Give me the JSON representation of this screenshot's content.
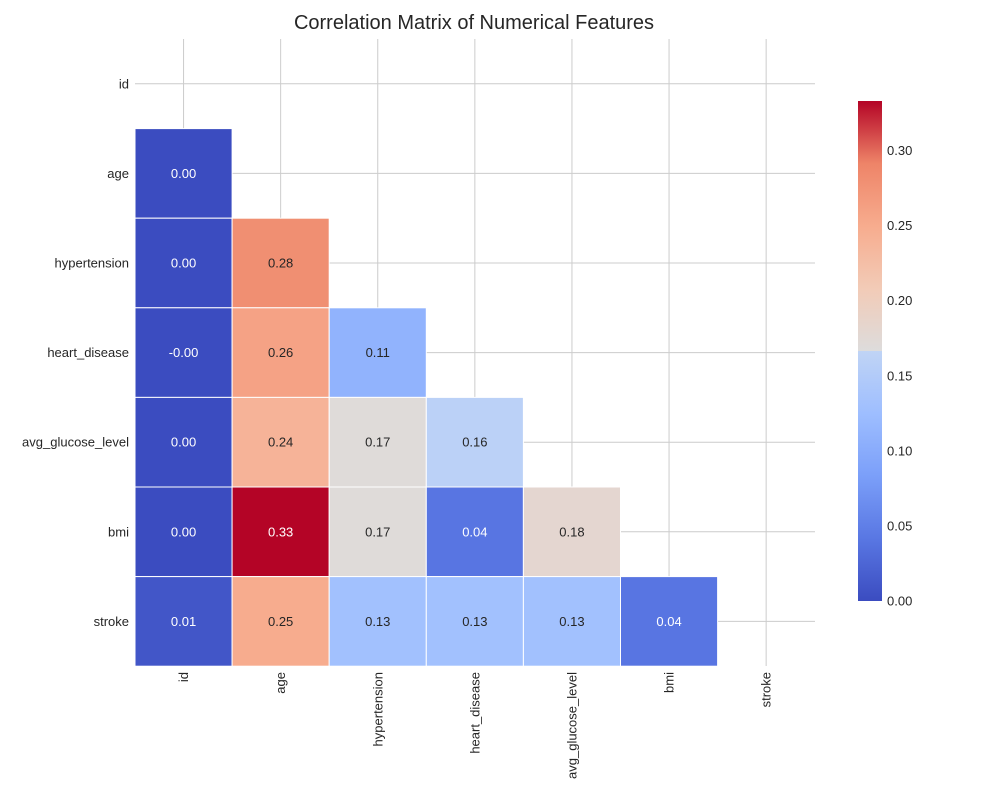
{
  "chart_data": {
    "type": "heatmap",
    "title": "Correlation Matrix of Numerical Features",
    "variables": [
      "id",
      "age",
      "hypertension",
      "heart_disease",
      "avg_glucose_level",
      "bmi",
      "stroke"
    ],
    "mask": "upper triangle including diagonal",
    "cells": [
      {
        "row": "age",
        "col": "id",
        "value": 0.0,
        "label": "0.00"
      },
      {
        "row": "hypertension",
        "col": "id",
        "value": 0.0,
        "label": "0.00"
      },
      {
        "row": "hypertension",
        "col": "age",
        "value": 0.28,
        "label": "0.28"
      },
      {
        "row": "heart_disease",
        "col": "id",
        "value": -0.001,
        "label": "-0.00"
      },
      {
        "row": "heart_disease",
        "col": "age",
        "value": 0.26,
        "label": "0.26"
      },
      {
        "row": "heart_disease",
        "col": "hypertension",
        "value": 0.11,
        "label": "0.11"
      },
      {
        "row": "avg_glucose_level",
        "col": "id",
        "value": 0.0,
        "label": "0.00"
      },
      {
        "row": "avg_glucose_level",
        "col": "age",
        "value": 0.24,
        "label": "0.24"
      },
      {
        "row": "avg_glucose_level",
        "col": "hypertension",
        "value": 0.17,
        "label": "0.17"
      },
      {
        "row": "avg_glucose_level",
        "col": "heart_disease",
        "value": 0.16,
        "label": "0.16"
      },
      {
        "row": "bmi",
        "col": "id",
        "value": 0.0,
        "label": "0.00"
      },
      {
        "row": "bmi",
        "col": "age",
        "value": 0.333,
        "label": "0.33"
      },
      {
        "row": "bmi",
        "col": "hypertension",
        "value": 0.17,
        "label": "0.17"
      },
      {
        "row": "bmi",
        "col": "heart_disease",
        "value": 0.04,
        "label": "0.04"
      },
      {
        "row": "bmi",
        "col": "avg_glucose_level",
        "value": 0.18,
        "label": "0.18"
      },
      {
        "row": "stroke",
        "col": "id",
        "value": 0.01,
        "label": "0.01"
      },
      {
        "row": "stroke",
        "col": "age",
        "value": 0.25,
        "label": "0.25"
      },
      {
        "row": "stroke",
        "col": "hypertension",
        "value": 0.13,
        "label": "0.13"
      },
      {
        "row": "stroke",
        "col": "heart_disease",
        "value": 0.13,
        "label": "0.13"
      },
      {
        "row": "stroke",
        "col": "avg_glucose_level",
        "value": 0.13,
        "label": "0.13"
      },
      {
        "row": "stroke",
        "col": "bmi",
        "value": 0.04,
        "label": "0.04"
      }
    ],
    "colormap": "coolwarm",
    "colorbar": {
      "range": [
        0.0,
        0.333
      ],
      "ticks": [
        0.0,
        0.05,
        0.1,
        0.15,
        0.2,
        0.25,
        0.3
      ],
      "tick_labels": [
        "0.00",
        "0.05",
        "0.10",
        "0.15",
        "0.20",
        "0.25",
        "0.30"
      ],
      "placement": "right"
    },
    "grid": true
  }
}
